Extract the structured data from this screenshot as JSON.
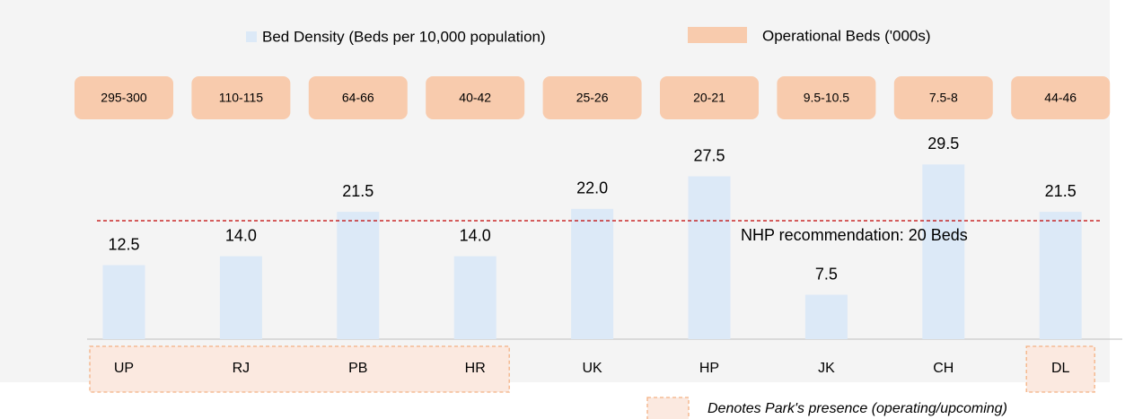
{
  "chart_data": {
    "type": "bar",
    "categories": [
      "UP",
      "RJ",
      "PB",
      "HR",
      "UK",
      "HP",
      "JK",
      "CH",
      "DL"
    ],
    "series": [
      {
        "name": "Bed Density (Beds per 10,000 population)",
        "color": "#dce9f7",
        "values": [
          12.5,
          14.0,
          21.5,
          14.0,
          22.0,
          27.5,
          7.5,
          29.5,
          21.5
        ],
        "value_labels": [
          "12.5",
          "14.0",
          "21.5",
          "14.0",
          "22.0",
          "27.5",
          "7.5",
          "29.5",
          "21.5"
        ]
      }
    ],
    "operational_beds": {
      "name": "Operational Beds ('000s)",
      "color": "#f8cbad",
      "labels": [
        "295-300",
        "110-115",
        "64-66",
        "40-42",
        "25-26",
        "20-21",
        "9.5-10.5",
        "7.5-8",
        "44-46"
      ]
    },
    "ylim": [
      0,
      30
    ],
    "reference_line": {
      "value": 20,
      "label": "NHP recommendation: 20 Beds",
      "color": "#c00000"
    },
    "park_presence": {
      "label": "Denotes Park's presence (operating/upcoming)",
      "color": "#f4b183",
      "fill": "#fbe9e0",
      "flags": [
        true,
        true,
        true,
        true,
        false,
        false,
        false,
        false,
        true
      ]
    }
  }
}
